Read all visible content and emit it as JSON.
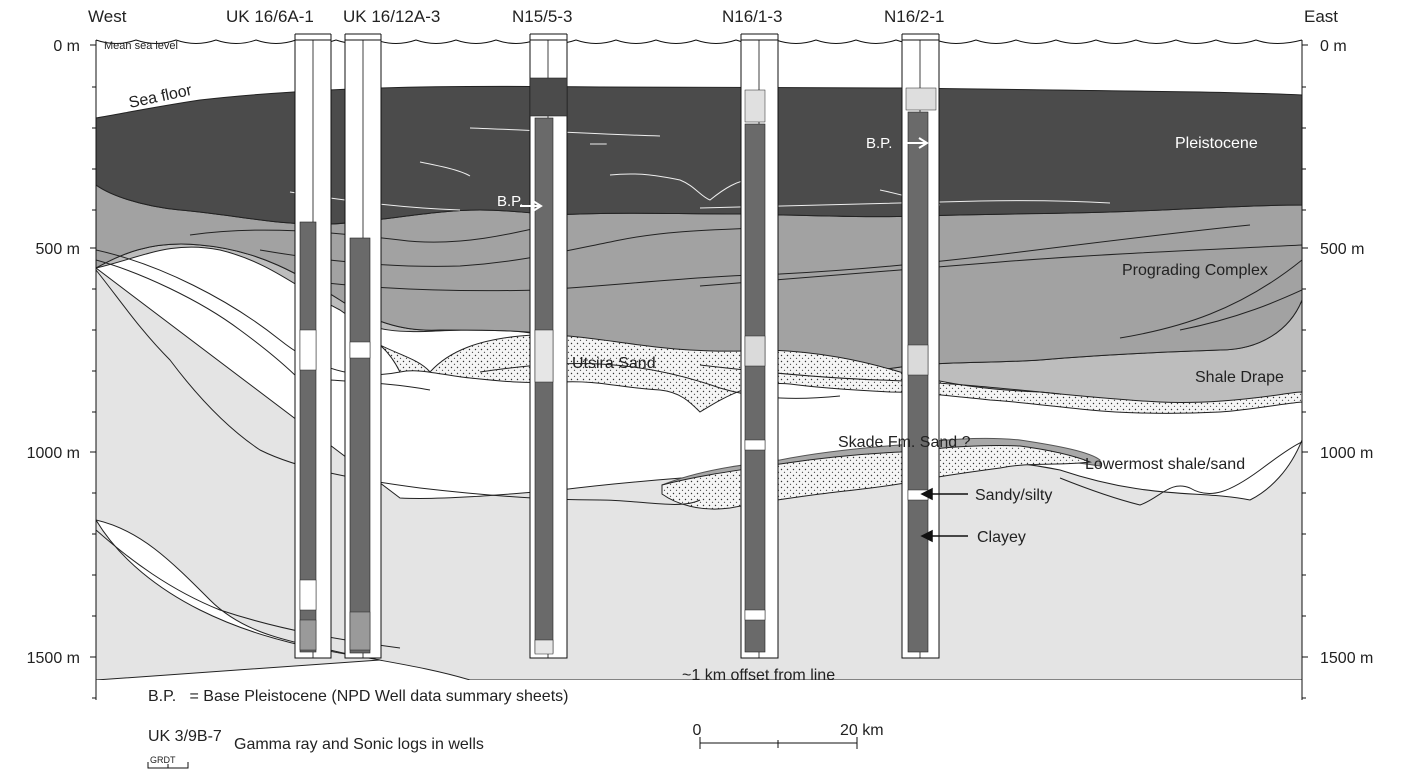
{
  "labels": {
    "west": "West",
    "east": "East",
    "mean_sea_level": "Mean sea level",
    "sea_floor": "Sea floor"
  },
  "wells": [
    "UK 16/6A-1",
    "UK 16/12A-3",
    "N15/5-3",
    "N16/1-3",
    "N16/2-1"
  ],
  "depth_axis": {
    "left_ticks": [
      "0 m",
      "500 m",
      "1000 m",
      "1500 m"
    ],
    "right_ticks": [
      "0 m",
      "500 m",
      "1000 m",
      "1500 m"
    ]
  },
  "units": {
    "pleistocene": "Pleistocene",
    "prograding_complex": "Prograding Complex",
    "shale_drape": "Shale Drape",
    "utsira_sand": "Utsira Sand",
    "skade_sand": "Skade Fm. Sand ?",
    "lowermost": "Lowermost shale/sand"
  },
  "markers": {
    "bp_1": "B.P.",
    "bp_2": "B.P.",
    "sandy": "Sandy/silty",
    "clayey": "Clayey"
  },
  "notes": {
    "offset": "~1 km offset from line",
    "bp_def": "B.P.   = Base Pleistocene (NPD Well data summary sheets)",
    "legend_well": "UK 3/9B-7",
    "legend_desc": "Gamma ray and Sonic logs in wells",
    "legend_grdt": "GRDT"
  },
  "scale_bar": {
    "start": "0",
    "end": "20 km"
  },
  "colors": {
    "pleistocene": "#4b4b4b",
    "prograding": "#a2a2a2",
    "shale_drape": "#bdbdbd",
    "lowermost": "#e4e4e4",
    "sand": "#f4f4f4"
  }
}
